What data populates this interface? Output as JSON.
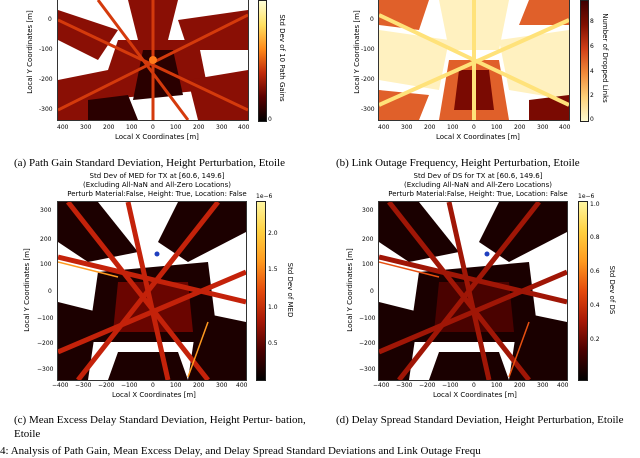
{
  "panels": {
    "a": {
      "ylabel": "Local Y Coordinates [m]",
      "xlabel": "Local X Coordinates [m]",
      "xticks": [
        "400",
        "300",
        "200",
        "100",
        "0",
        "100",
        "200",
        "300",
        "400"
      ],
      "yticks": [
        "0",
        "-100",
        "-200",
        "-300"
      ],
      "cbar_label": "Std Dev of 10 Path Gains",
      "cbar_ticks": [
        "0"
      ],
      "caption": "(a) Path Gain Standard Deviation, Height Perturbation, Etoile"
    },
    "b": {
      "ylabel": "Local Y Coordinates [m]",
      "xlabel": "Local X Coordinates [m]",
      "xticks": [
        "400",
        "300",
        "200",
        "100",
        "0",
        "100",
        "200",
        "300",
        "400"
      ],
      "yticks": [
        "0",
        "-100",
        "-200",
        "-300"
      ],
      "cbar_label": "Number of Dropped Links",
      "cbar_ticks": [
        "8",
        "6",
        "4",
        "2",
        "0"
      ],
      "caption": "(b) Link Outage Frequency, Height Perturbation, Etoile"
    },
    "c": {
      "title_line1": "Std Dev of MED for TX at [60.6, 149.6]",
      "title_line2": "(Excluding All-NaN and All-Zero Locations)",
      "title_line3": "Perturb Material:False, Height: True, Location: False",
      "ylabel": "Local Y Coordinates [m]",
      "xlabel": "Local X Coordinates [m]",
      "xticks": [
        "−400",
        "−300",
        "−200",
        "−100",
        "0",
        "100",
        "200",
        "300",
        "400"
      ],
      "yticks": [
        "300",
        "200",
        "100",
        "0",
        "−100",
        "−200",
        "−300"
      ],
      "cbar_label": "Std Dev of MED",
      "cbar_exp": "1e−6",
      "cbar_ticks": [
        "2.0",
        "1.5",
        "1.0",
        "0.5"
      ],
      "caption": "(c) Mean Excess Delay Standard Deviation, Height Pertur- bation, Etoile"
    },
    "d": {
      "title_line1": "Std Dev of DS for TX at [60.6, 149.6]",
      "title_line2": "(Excluding All-NaN and All-Zero Locations)",
      "title_line3": "Perturb Material:False, Height: True, Location: False",
      "ylabel": "Local Y Coordinates [m]",
      "xlabel": "Local X Coordinates [m]",
      "xticks": [
        "−400",
        "−300",
        "−200",
        "−100",
        "0",
        "100",
        "200",
        "300",
        "400"
      ],
      "yticks": [
        "300",
        "200",
        "100",
        "0",
        "−100",
        "−200",
        "−300"
      ],
      "cbar_label": "Std Dev of DS",
      "cbar_exp": "1e−6",
      "cbar_ticks": [
        "1.0",
        "0.8",
        "0.6",
        "0.4",
        "0.2"
      ],
      "caption": "(d) Delay Spread Standard Deviation, Height Perturbation, Etoile"
    }
  },
  "figure_caption": "4: Analysis of Path Gain, Mean Excess Delay, and Delay Spread Standard Deviations and Link Outage Frequ",
  "colors": {
    "hot_dark": "#200000",
    "hot_mid": "#b8200a",
    "hot_bright": "#ff9a20",
    "tx_marker": "#1f3fbf"
  }
}
